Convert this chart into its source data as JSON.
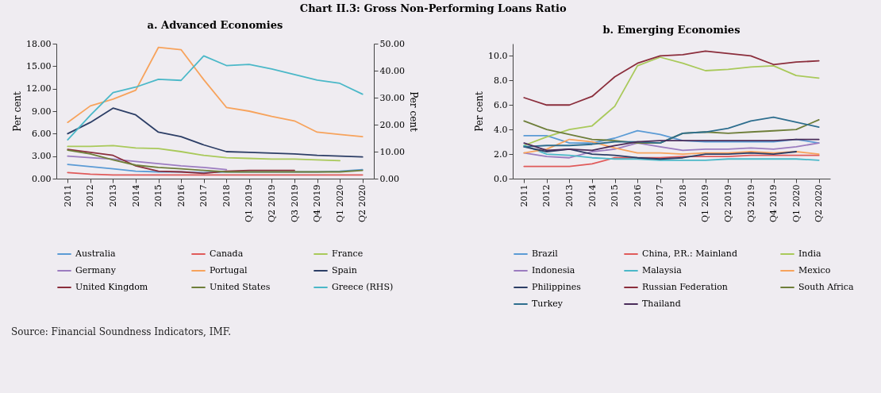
{
  "chart_data": [
    {
      "type": "line",
      "title": "Chart II.3: Gross Non-Performing Loans Ratio",
      "subtitle": "a. Advanced Economies",
      "ylabel": "Per cent",
      "y2label": "Per cent",
      "categories": [
        "2011",
        "2012",
        "2013",
        "2014",
        "2015",
        "2016",
        "2017",
        "2018",
        "Q1 2019",
        "Q2 2019",
        "Q3 2019",
        "Q4 2019",
        "Q1 2020",
        "Q2 2020"
      ],
      "ylim": [
        0,
        18
      ],
      "yticks": [
        {
          "value": 0,
          "label": "0.00"
        },
        {
          "value": 3,
          "label": "3.00"
        },
        {
          "value": 6,
          "label": "6.00"
        },
        {
          "value": 9,
          "label": "9.00"
        },
        {
          "value": 12,
          "label": "12.00"
        },
        {
          "value": 15,
          "label": "15.00"
        },
        {
          "value": 18,
          "label": "18.00"
        }
      ],
      "y2lim": [
        0,
        50
      ],
      "y2ticks": [
        {
          "value": 0,
          "label": "0.00"
        },
        {
          "value": 10,
          "label": "10.00"
        },
        {
          "value": 20,
          "label": "20.00"
        },
        {
          "value": 30,
          "label": "30.00"
        },
        {
          "value": 40,
          "label": "40.00"
        },
        {
          "value": 50,
          "label": "50.00"
        }
      ],
      "legend": "bottom",
      "annotations": [
        "Source: Financial Soundness Indicators, IMF."
      ],
      "series": [
        {
          "name": "Australia",
          "color": "#5b9bd5",
          "values": [
            1.9,
            1.6,
            1.3,
            1.0,
            0.9,
            0.9,
            0.8,
            0.9,
            0.9,
            0.9,
            0.9,
            0.9,
            1.0,
            1.2
          ]
        },
        {
          "name": "Canada",
          "color": "#e05a5a",
          "values": [
            0.8,
            0.6,
            0.5,
            0.5,
            0.5,
            0.5,
            0.5,
            0.5,
            0.5,
            0.5,
            0.5,
            0.5,
            0.5,
            0.5
          ]
        },
        {
          "name": "France",
          "color": "#a9c95a",
          "values": [
            4.3,
            4.3,
            4.4,
            4.1,
            4.0,
            3.6,
            3.1,
            2.8,
            2.7,
            2.6,
            2.6,
            2.5,
            2.4,
            null
          ]
        },
        {
          "name": "Germany",
          "color": "#9c7cc0",
          "values": [
            3.0,
            2.8,
            2.6,
            2.3,
            2.0,
            1.7,
            1.5,
            1.2,
            null,
            null,
            null,
            null,
            null,
            null
          ]
        },
        {
          "name": "Portugal",
          "color": "#f7a35c",
          "values": [
            7.5,
            9.7,
            10.6,
            11.8,
            17.5,
            17.2,
            13.2,
            9.5,
            9.0,
            8.3,
            7.7,
            6.2,
            5.9,
            5.6
          ]
        },
        {
          "name": "Spain",
          "color": "#2c3e66",
          "values": [
            6.0,
            7.5,
            9.4,
            8.5,
            6.2,
            5.6,
            4.5,
            3.6,
            3.5,
            3.4,
            3.3,
            3.1,
            3.0,
            2.9
          ]
        },
        {
          "name": "United Kingdom",
          "color": "#8b2e3c",
          "values": [
            3.9,
            3.5,
            3.1,
            1.7,
            1.0,
            0.9,
            0.7,
            1.0,
            1.1,
            1.1,
            1.1,
            null,
            null,
            null
          ]
        },
        {
          "name": "United States",
          "color": "#6e7e3a",
          "values": [
            3.8,
            3.3,
            2.5,
            1.8,
            1.5,
            1.3,
            1.1,
            0.9,
            0.9,
            0.9,
            0.9,
            0.9,
            0.9,
            1.1
          ]
        },
        {
          "name": "Greece (RHS)",
          "color": "#4bb8c8",
          "axis": "y2",
          "values": [
            14.4,
            23.5,
            31.9,
            33.9,
            36.8,
            36.4,
            45.5,
            41.9,
            42.3,
            40.6,
            38.6,
            36.5,
            35.3,
            31.3
          ]
        }
      ]
    },
    {
      "type": "line",
      "subtitle": "b. Emerging Economies",
      "ylabel": "Per cent",
      "categories": [
        "2011",
        "2012",
        "2013",
        "2014",
        "2015",
        "2016",
        "2017",
        "2018",
        "Q1 2019",
        "Q2 2019",
        "Q3 2019",
        "Q4 2019",
        "Q1 2020",
        "Q2 2020"
      ],
      "ylim": [
        0,
        11
      ],
      "yticks": [
        {
          "value": 0,
          "label": "0.0"
        },
        {
          "value": 2,
          "label": "2.0"
        },
        {
          "value": 4,
          "label": "4.0"
        },
        {
          "value": 6,
          "label": "6.0"
        },
        {
          "value": 8,
          "label": "8.0"
        },
        {
          "value": 10,
          "label": "10.0"
        }
      ],
      "legend": "bottom",
      "series": [
        {
          "name": "Brazil",
          "color": "#5b9bd5",
          "values": [
            3.5,
            3.5,
            2.9,
            2.9,
            3.3,
            3.9,
            3.6,
            3.1,
            3.0,
            3.0,
            3.0,
            3.0,
            3.2,
            2.9
          ]
        },
        {
          "name": "China, P.R.: Mainland",
          "color": "#e05a5a",
          "values": [
            1.0,
            1.0,
            1.0,
            1.2,
            1.7,
            1.7,
            1.7,
            1.8,
            1.8,
            1.8,
            1.9,
            1.9,
            1.9,
            1.9
          ]
        },
        {
          "name": "India",
          "color": "#a9c95a",
          "values": [
            2.7,
            3.4,
            4.0,
            4.3,
            5.9,
            9.2,
            9.9,
            9.4,
            8.8,
            8.9,
            9.1,
            9.2,
            8.4,
            8.2
          ]
        },
        {
          "name": "Indonesia",
          "color": "#9c7cc0",
          "values": [
            2.1,
            1.8,
            1.7,
            2.2,
            2.4,
            2.9,
            2.6,
            2.3,
            2.4,
            2.4,
            2.5,
            2.4,
            2.6,
            2.9
          ]
        },
        {
          "name": "Malaysia",
          "color": "#4bb8c8",
          "values": [
            2.7,
            2.0,
            1.9,
            1.7,
            1.6,
            1.6,
            1.5,
            1.5,
            1.5,
            1.6,
            1.6,
            1.6,
            1.6,
            1.5
          ]
        },
        {
          "name": "Mexico",
          "color": "#f7a35c",
          "values": [
            2.1,
            2.4,
            3.2,
            3.0,
            2.5,
            2.1,
            2.1,
            2.0,
            2.1,
            2.1,
            2.2,
            2.1,
            2.2,
            2.0
          ]
        },
        {
          "name": "Philippines",
          "color": "#2c3e66",
          "values": [
            2.6,
            2.2,
            2.4,
            2.0,
            1.9,
            1.7,
            1.6,
            1.7,
            2.0,
            2.0,
            2.1,
            2.0,
            2.2,
            null
          ]
        },
        {
          "name": "Russian Federation",
          "color": "#8b2e3c",
          "values": [
            6.6,
            6.0,
            6.0,
            6.7,
            8.3,
            9.4,
            10.0,
            10.1,
            10.4,
            10.2,
            10.0,
            9.3,
            9.5,
            9.6
          ]
        },
        {
          "name": "South Africa",
          "color": "#6e7e3a",
          "values": [
            4.7,
            4.0,
            3.6,
            3.2,
            3.1,
            2.9,
            2.9,
            3.7,
            3.8,
            3.7,
            3.8,
            3.9,
            4.0,
            4.8
          ]
        },
        {
          "name": "Turkey",
          "color": "#2e6e8e",
          "values": [
            2.6,
            2.7,
            2.7,
            2.8,
            3.0,
            3.0,
            2.9,
            3.7,
            3.8,
            4.1,
            4.7,
            5.0,
            4.6,
            4.2
          ]
        },
        {
          "name": "Thailand",
          "color": "#4a2c5a",
          "values": [
            2.9,
            2.3,
            2.4,
            2.3,
            2.7,
            3.0,
            3.1,
            3.1,
            3.1,
            3.1,
            3.1,
            3.1,
            3.2,
            3.2
          ]
        }
      ]
    }
  ]
}
